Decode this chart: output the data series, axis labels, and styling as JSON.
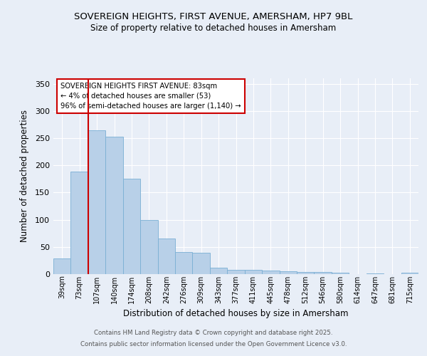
{
  "title_line1": "SOVEREIGN HEIGHTS, FIRST AVENUE, AMERSHAM, HP7 9BL",
  "title_line2": "Size of property relative to detached houses in Amersham",
  "xlabel": "Distribution of detached houses by size in Amersham",
  "ylabel": "Number of detached properties",
  "categories": [
    "39sqm",
    "73sqm",
    "107sqm",
    "140sqm",
    "174sqm",
    "208sqm",
    "242sqm",
    "276sqm",
    "309sqm",
    "343sqm",
    "377sqm",
    "411sqm",
    "445sqm",
    "478sqm",
    "512sqm",
    "546sqm",
    "580sqm",
    "614sqm",
    "647sqm",
    "681sqm",
    "715sqm"
  ],
  "values": [
    29,
    188,
    265,
    253,
    175,
    99,
    65,
    40,
    39,
    12,
    8,
    8,
    6,
    5,
    4,
    4,
    2,
    0,
    1,
    0,
    2
  ],
  "bar_color": "#b8d0e8",
  "bar_edge_color": "#7aafd4",
  "vline_x": 1.5,
  "vline_color": "#cc0000",
  "annotation_title": "SOVEREIGN HEIGHTS FIRST AVENUE: 83sqm",
  "annotation_line2": "← 4% of detached houses are smaller (53)",
  "annotation_line3": "96% of semi-detached houses are larger (1,140) →",
  "annotation_box_color": "#cc0000",
  "ylim": [
    0,
    360
  ],
  "yticks": [
    0,
    50,
    100,
    150,
    200,
    250,
    300,
    350
  ],
  "footer_line1": "Contains HM Land Registry data © Crown copyright and database right 2025.",
  "footer_line2": "Contains public sector information licensed under the Open Government Licence v3.0.",
  "bg_color": "#e8eef7",
  "plot_bg_color": "#e8eef7"
}
